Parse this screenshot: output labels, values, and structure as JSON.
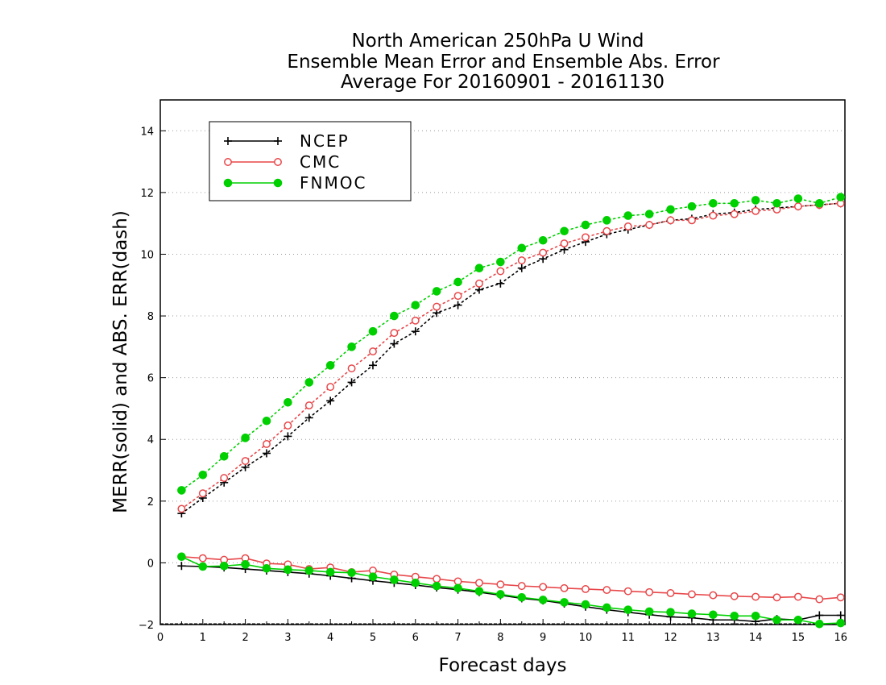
{
  "chart_data": {
    "type": "line",
    "title_lines": [
      "North American 250hPa U Wind",
      "Ensemble Mean Error and Ensemble Abs. Error",
      "Average For 20160901 - 20161130"
    ],
    "xlabel": "Forecast days",
    "ylabel": "MERR(solid) and ABS. ERR(dash)",
    "xlim": [
      0,
      16.1
    ],
    "ylim": [
      -2,
      15
    ],
    "x_ticks": [
      "0",
      "1",
      "2",
      "3",
      "4",
      "5",
      "6",
      "7",
      "8",
      "9",
      "10",
      "11",
      "12",
      "13",
      "14",
      "15",
      "16"
    ],
    "y_ticks": [
      "−2",
      "0",
      "2",
      "4",
      "6",
      "8",
      "10",
      "12",
      "14"
    ],
    "grid": "horizontal dotted",
    "legend_position": "top-left",
    "x": [
      0.5,
      1,
      1.5,
      2,
      2.5,
      3,
      3.5,
      4,
      4.5,
      5,
      5.5,
      6,
      6.5,
      7,
      7.5,
      8,
      8.5,
      9,
      9.5,
      10,
      10.5,
      11,
      11.5,
      12,
      12.5,
      13,
      13.5,
      14,
      14.5,
      15,
      15.5,
      16
    ],
    "series": [
      {
        "name": "NCEP",
        "color": "#000000",
        "marker": "plus",
        "abs_err": [
          1.6,
          2.1,
          2.6,
          3.1,
          3.55,
          4.1,
          4.7,
          5.25,
          5.85,
          6.4,
          7.1,
          7.5,
          8.1,
          8.35,
          8.85,
          9.05,
          9.55,
          9.85,
          10.15,
          10.4,
          10.65,
          10.8,
          10.95,
          11.1,
          11.15,
          11.3,
          11.35,
          11.45,
          11.5,
          11.55,
          11.6,
          11.65
        ],
        "mean_err": [
          -0.1,
          -0.12,
          -0.15,
          -0.2,
          -0.25,
          -0.3,
          -0.35,
          -0.42,
          -0.5,
          -0.58,
          -0.65,
          -0.72,
          -0.8,
          -0.87,
          -0.95,
          -1.05,
          -1.15,
          -1.22,
          -1.32,
          -1.42,
          -1.52,
          -1.6,
          -1.68,
          -1.75,
          -1.78,
          -1.85,
          -1.85,
          -1.9,
          -1.82,
          -1.85,
          -1.7,
          -1.7
        ]
      },
      {
        "name": "CMC",
        "color": "#e8474a",
        "marker": "open-circle",
        "abs_err": [
          1.75,
          2.25,
          2.75,
          3.3,
          3.85,
          4.45,
          5.1,
          5.7,
          6.3,
          6.85,
          7.45,
          7.85,
          8.3,
          8.65,
          9.05,
          9.45,
          9.8,
          10.05,
          10.35,
          10.55,
          10.75,
          10.9,
          10.95,
          11.1,
          11.1,
          11.25,
          11.3,
          11.4,
          11.45,
          11.55,
          11.6,
          11.65
        ],
        "mean_err": [
          0.2,
          0.15,
          0.1,
          0.15,
          -0.02,
          -0.05,
          -0.2,
          -0.15,
          -0.3,
          -0.25,
          -0.38,
          -0.45,
          -0.52,
          -0.6,
          -0.65,
          -0.7,
          -0.75,
          -0.78,
          -0.82,
          -0.85,
          -0.88,
          -0.92,
          -0.95,
          -0.98,
          -1.02,
          -1.05,
          -1.08,
          -1.1,
          -1.12,
          -1.1,
          -1.18,
          -1.12
        ]
      },
      {
        "name": "FNMOC",
        "color": "#00d000",
        "marker": "filled-circle",
        "abs_err": [
          2.35,
          2.85,
          3.45,
          4.05,
          4.6,
          5.2,
          5.85,
          6.4,
          7.0,
          7.5,
          8.0,
          8.35,
          8.8,
          9.1,
          9.55,
          9.75,
          10.2,
          10.45,
          10.75,
          10.95,
          11.1,
          11.25,
          11.3,
          11.45,
          11.55,
          11.65,
          11.65,
          11.75,
          11.65,
          11.8,
          11.65,
          11.85
        ],
        "mean_err": [
          0.2,
          -0.12,
          -0.1,
          -0.05,
          -0.18,
          -0.22,
          -0.25,
          -0.3,
          -0.32,
          -0.45,
          -0.55,
          -0.65,
          -0.75,
          -0.82,
          -0.92,
          -1.02,
          -1.12,
          -1.2,
          -1.28,
          -1.35,
          -1.45,
          -1.52,
          -1.58,
          -1.6,
          -1.65,
          -1.68,
          -1.72,
          -1.72,
          -1.85,
          -1.85,
          -1.98,
          -1.95
        ]
      }
    ]
  }
}
